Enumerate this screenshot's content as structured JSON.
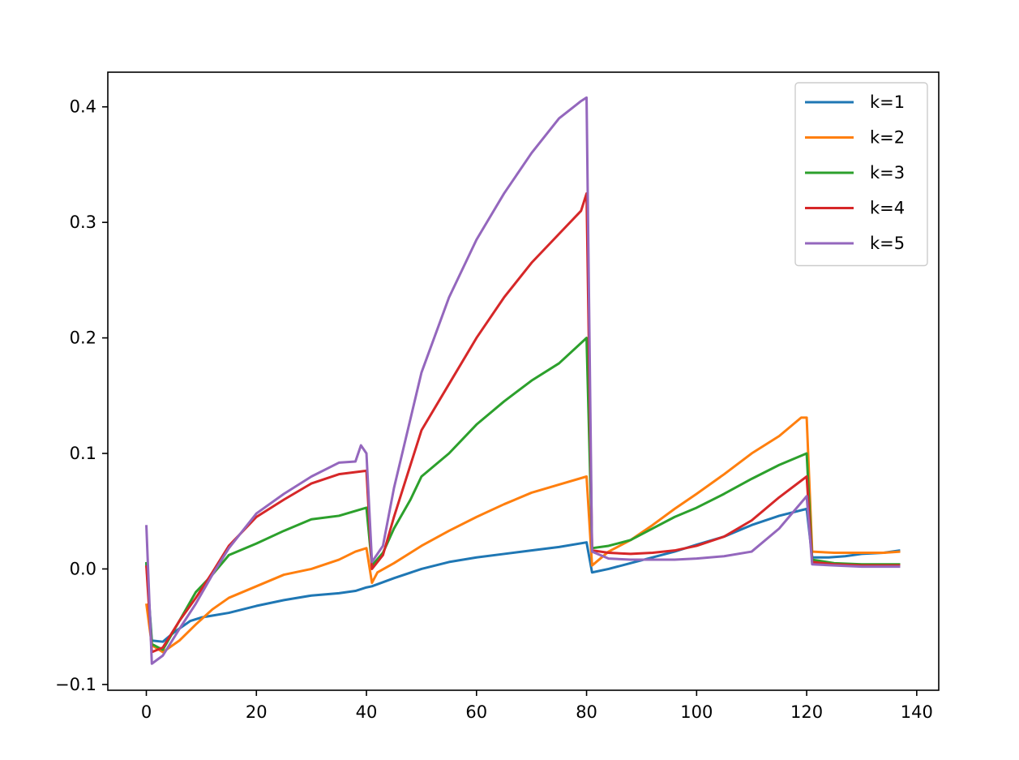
{
  "chart_data": {
    "type": "line",
    "title": "",
    "xlabel": "",
    "ylabel": "",
    "xlim": [
      -7,
      144
    ],
    "ylim": [
      -0.105,
      0.43
    ],
    "xticks": [
      0,
      20,
      40,
      60,
      80,
      100,
      120,
      140
    ],
    "xtick_labels": [
      "0",
      "20",
      "40",
      "60",
      "80",
      "100",
      "120",
      "140"
    ],
    "yticks": [
      -0.1,
      0.0,
      0.1,
      0.2,
      0.3,
      0.4
    ],
    "ytick_labels": [
      "−0.1",
      "0.0",
      "0.1",
      "0.2",
      "0.3",
      "0.4"
    ],
    "grid": false,
    "legend_position": "upper right",
    "series": [
      {
        "name": "k=1",
        "color": "#1f77b4",
        "points": [
          [
            0,
            0.005
          ],
          [
            1,
            -0.062
          ],
          [
            3,
            -0.063
          ],
          [
            5,
            -0.055
          ],
          [
            8,
            -0.045
          ],
          [
            10,
            -0.042
          ],
          [
            15,
            -0.038
          ],
          [
            20,
            -0.032
          ],
          [
            25,
            -0.027
          ],
          [
            30,
            -0.023
          ],
          [
            35,
            -0.021
          ],
          [
            38,
            -0.019
          ],
          [
            40,
            -0.016
          ],
          [
            41,
            -0.015
          ],
          [
            45,
            -0.008
          ],
          [
            50,
            0.0
          ],
          [
            55,
            0.006
          ],
          [
            60,
            0.01
          ],
          [
            65,
            0.013
          ],
          [
            70,
            0.016
          ],
          [
            75,
            0.019
          ],
          [
            80,
            0.023
          ],
          [
            81,
            -0.003
          ],
          [
            84,
            0.0
          ],
          [
            88,
            0.005
          ],
          [
            92,
            0.01
          ],
          [
            96,
            0.015
          ],
          [
            100,
            0.021
          ],
          [
            105,
            0.028
          ],
          [
            110,
            0.038
          ],
          [
            115,
            0.046
          ],
          [
            120,
            0.052
          ],
          [
            121,
            0.01
          ],
          [
            124,
            0.01
          ],
          [
            127,
            0.011
          ],
          [
            130,
            0.013
          ],
          [
            134,
            0.014
          ],
          [
            137,
            0.016
          ]
        ]
      },
      {
        "name": "k=2",
        "color": "#ff7f0e",
        "points": [
          [
            0,
            -0.03
          ],
          [
            1,
            -0.066
          ],
          [
            3,
            -0.072
          ],
          [
            6,
            -0.062
          ],
          [
            9,
            -0.048
          ],
          [
            12,
            -0.035
          ],
          [
            15,
            -0.025
          ],
          [
            20,
            -0.015
          ],
          [
            25,
            -0.005
          ],
          [
            30,
            0.0
          ],
          [
            35,
            0.008
          ],
          [
            38,
            0.015
          ],
          [
            40,
            0.018
          ],
          [
            41,
            -0.012
          ],
          [
            42,
            -0.003
          ],
          [
            45,
            0.005
          ],
          [
            50,
            0.02
          ],
          [
            55,
            0.033
          ],
          [
            60,
            0.045
          ],
          [
            65,
            0.056
          ],
          [
            70,
            0.066
          ],
          [
            75,
            0.073
          ],
          [
            80,
            0.08
          ],
          [
            81,
            0.003
          ],
          [
            84,
            0.015
          ],
          [
            88,
            0.025
          ],
          [
            92,
            0.038
          ],
          [
            96,
            0.052
          ],
          [
            100,
            0.065
          ],
          [
            105,
            0.082
          ],
          [
            110,
            0.1
          ],
          [
            115,
            0.115
          ],
          [
            119,
            0.131
          ],
          [
            120,
            0.131
          ],
          [
            121,
            0.015
          ],
          [
            125,
            0.014
          ],
          [
            130,
            0.014
          ],
          [
            134,
            0.014
          ],
          [
            137,
            0.015
          ]
        ]
      },
      {
        "name": "k=3",
        "color": "#2ca02c",
        "points": [
          [
            0,
            0.006
          ],
          [
            1,
            -0.065
          ],
          [
            3,
            -0.07
          ],
          [
            6,
            -0.045
          ],
          [
            9,
            -0.02
          ],
          [
            12,
            -0.005
          ],
          [
            15,
            0.012
          ],
          [
            20,
            0.022
          ],
          [
            25,
            0.033
          ],
          [
            30,
            0.043
          ],
          [
            35,
            0.046
          ],
          [
            40,
            0.053
          ],
          [
            41,
            0.003
          ],
          [
            43,
            0.014
          ],
          [
            45,
            0.035
          ],
          [
            48,
            0.06
          ],
          [
            50,
            0.08
          ],
          [
            55,
            0.1
          ],
          [
            60,
            0.125
          ],
          [
            65,
            0.145
          ],
          [
            70,
            0.163
          ],
          [
            75,
            0.178
          ],
          [
            80,
            0.2
          ],
          [
            81,
            0.018
          ],
          [
            84,
            0.02
          ],
          [
            88,
            0.025
          ],
          [
            92,
            0.035
          ],
          [
            96,
            0.045
          ],
          [
            100,
            0.053
          ],
          [
            105,
            0.065
          ],
          [
            110,
            0.078
          ],
          [
            115,
            0.09
          ],
          [
            120,
            0.1
          ],
          [
            121,
            0.008
          ],
          [
            125,
            0.005
          ],
          [
            130,
            0.004
          ],
          [
            134,
            0.004
          ],
          [
            137,
            0.004
          ]
        ]
      },
      {
        "name": "k=4",
        "color": "#d62728",
        "points": [
          [
            0,
            0.003
          ],
          [
            1,
            -0.072
          ],
          [
            3,
            -0.068
          ],
          [
            6,
            -0.045
          ],
          [
            9,
            -0.025
          ],
          [
            12,
            -0.003
          ],
          [
            15,
            0.02
          ],
          [
            20,
            0.045
          ],
          [
            25,
            0.06
          ],
          [
            30,
            0.074
          ],
          [
            35,
            0.082
          ],
          [
            40,
            0.085
          ],
          [
            41,
            0.0
          ],
          [
            43,
            0.012
          ],
          [
            45,
            0.045
          ],
          [
            48,
            0.09
          ],
          [
            50,
            0.12
          ],
          [
            55,
            0.16
          ],
          [
            60,
            0.2
          ],
          [
            65,
            0.235
          ],
          [
            70,
            0.265
          ],
          [
            75,
            0.29
          ],
          [
            79,
            0.31
          ],
          [
            80,
            0.325
          ],
          [
            81,
            0.016
          ],
          [
            84,
            0.014
          ],
          [
            88,
            0.013
          ],
          [
            92,
            0.014
          ],
          [
            96,
            0.016
          ],
          [
            100,
            0.02
          ],
          [
            105,
            0.028
          ],
          [
            110,
            0.042
          ],
          [
            115,
            0.062
          ],
          [
            120,
            0.08
          ],
          [
            121,
            0.006
          ],
          [
            125,
            0.004
          ],
          [
            130,
            0.003
          ],
          [
            134,
            0.003
          ],
          [
            137,
            0.003
          ]
        ]
      },
      {
        "name": "k=5",
        "color": "#9467bd",
        "points": [
          [
            0,
            0.038
          ],
          [
            1,
            -0.082
          ],
          [
            3,
            -0.075
          ],
          [
            6,
            -0.052
          ],
          [
            9,
            -0.03
          ],
          [
            12,
            -0.005
          ],
          [
            15,
            0.018
          ],
          [
            20,
            0.048
          ],
          [
            25,
            0.065
          ],
          [
            30,
            0.08
          ],
          [
            35,
            0.092
          ],
          [
            38,
            0.093
          ],
          [
            39,
            0.107
          ],
          [
            40,
            0.1
          ],
          [
            41,
            0.006
          ],
          [
            43,
            0.02
          ],
          [
            45,
            0.07
          ],
          [
            48,
            0.13
          ],
          [
            50,
            0.17
          ],
          [
            55,
            0.235
          ],
          [
            60,
            0.285
          ],
          [
            65,
            0.325
          ],
          [
            70,
            0.36
          ],
          [
            75,
            0.39
          ],
          [
            79,
            0.405
          ],
          [
            80,
            0.408
          ],
          [
            81,
            0.015
          ],
          [
            84,
            0.009
          ],
          [
            88,
            0.008
          ],
          [
            92,
            0.008
          ],
          [
            96,
            0.008
          ],
          [
            100,
            0.009
          ],
          [
            105,
            0.011
          ],
          [
            110,
            0.015
          ],
          [
            115,
            0.035
          ],
          [
            120,
            0.063
          ],
          [
            121,
            0.004
          ],
          [
            125,
            0.003
          ],
          [
            130,
            0.002
          ],
          [
            134,
            0.002
          ],
          [
            137,
            0.002
          ]
        ]
      }
    ]
  }
}
